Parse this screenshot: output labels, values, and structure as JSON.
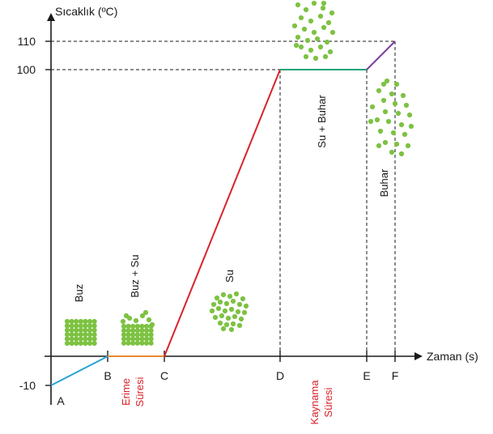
{
  "chart_data": {
    "type": "line",
    "title": "",
    "xlabel": "Zaman (s)",
    "ylabel": "Sıcaklık (ºC)",
    "y_ticks": [
      {
        "label": "110",
        "value": 110
      },
      {
        "label": "100",
        "value": 100
      },
      {
        "label": "-10",
        "value": -10
      }
    ],
    "x_points": [
      {
        "label": "A",
        "x": 0
      },
      {
        "label": "B",
        "x": 1
      },
      {
        "label": "C",
        "x": 2
      },
      {
        "label": "D",
        "x": 4
      },
      {
        "label": "E",
        "x": 5
      },
      {
        "label": "F",
        "x": 5.5
      }
    ],
    "segments": [
      {
        "from": "A",
        "to": "B",
        "y_start": -10,
        "y_end": 0,
        "color": "#2aa3d8"
      },
      {
        "from": "B",
        "to": "C",
        "y_start": 0,
        "y_end": 0,
        "color": "#e58a2e"
      },
      {
        "from": "C",
        "to": "D",
        "y_start": 0,
        "y_end": 100,
        "color": "#d9222a"
      },
      {
        "from": "D",
        "to": "E",
        "y_start": 100,
        "y_end": 100,
        "color": "#1fa37a"
      },
      {
        "from": "E",
        "to": "F",
        "y_start": 100,
        "y_end": 110,
        "color": "#7b3fa0"
      }
    ],
    "phase_labels": [
      "Buz",
      "Buz + Su",
      "Su",
      "Su + Buhar",
      "Buhar"
    ],
    "interval_labels": {
      "melting": [
        "Erime",
        "Süresi"
      ],
      "boiling": [
        "Kaynama",
        "Süresi"
      ]
    },
    "grid": false,
    "colors": {
      "particle": "#7dc242",
      "axis": "#1a1a1a",
      "interval_label": "#d9222a"
    }
  }
}
